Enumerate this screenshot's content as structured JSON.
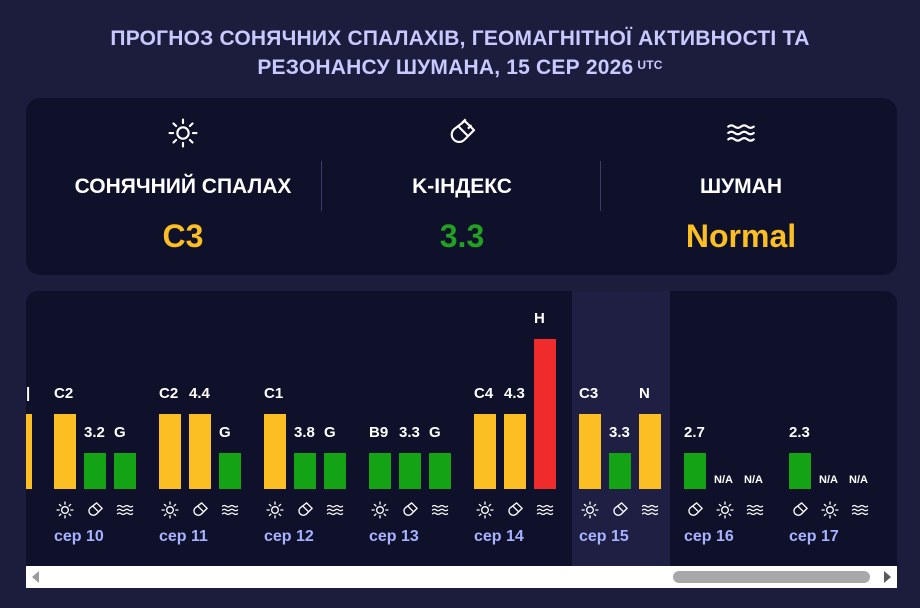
{
  "title": {
    "line1": "ПРОГНОЗ СОНЯЧНИХ СПАЛАХІВ, ГЕОМАГНІТНОЇ АКТИВНОСТІ ТА",
    "line2": "РЕЗОНАНСУ ШУМАНА, 15 СЕР 2026",
    "tz": "UTC"
  },
  "summary": {
    "flare": {
      "label": "СОНЯЧНИЙ СПАЛАХ",
      "value": "C3",
      "color": "#fbbf24",
      "icon": "sun-icon"
    },
    "kindex": {
      "label": "K-ІНДЕКС",
      "value": "3.3",
      "color": "#22a022",
      "icon": "magnet-icon"
    },
    "schumann": {
      "label": "ШУМАН",
      "value": "Normal",
      "color": "#fbbf24",
      "icon": "waves-icon"
    }
  },
  "colors": {
    "yellow": "#fbbf24",
    "green": "#14a314",
    "red": "#f02b2b",
    "date": "#a6b1ff"
  },
  "days": [
    {
      "date": "сер 10",
      "bars": [
        {
          "type": "flare",
          "label": "C2",
          "level": 0.5,
          "color": "#fbbf24"
        },
        {
          "type": "kindex",
          "label": "3.2",
          "level": 0.24,
          "color": "#14a314"
        },
        {
          "type": "schumann",
          "label": "G",
          "level": 0.24,
          "color": "#14a314"
        }
      ]
    },
    {
      "date": "сер 11",
      "bars": [
        {
          "type": "flare",
          "label": "C2",
          "level": 0.5,
          "color": "#fbbf24"
        },
        {
          "type": "kindex",
          "label": "4.4",
          "level": 0.5,
          "color": "#fbbf24"
        },
        {
          "type": "schumann",
          "label": "G",
          "level": 0.24,
          "color": "#14a314"
        }
      ]
    },
    {
      "date": "сер 12",
      "bars": [
        {
          "type": "flare",
          "label": "C1",
          "level": 0.5,
          "color": "#fbbf24"
        },
        {
          "type": "kindex",
          "label": "3.8",
          "level": 0.24,
          "color": "#14a314"
        },
        {
          "type": "schumann",
          "label": "G",
          "level": 0.24,
          "color": "#14a314"
        }
      ]
    },
    {
      "date": "сер 13",
      "bars": [
        {
          "type": "flare",
          "label": "B9",
          "level": 0.24,
          "color": "#14a314"
        },
        {
          "type": "kindex",
          "label": "3.3",
          "level": 0.24,
          "color": "#14a314"
        },
        {
          "type": "schumann",
          "label": "G",
          "level": 0.24,
          "color": "#14a314"
        }
      ]
    },
    {
      "date": "сер 14",
      "bars": [
        {
          "type": "flare",
          "label": "C4",
          "level": 0.5,
          "color": "#fbbf24"
        },
        {
          "type": "kindex",
          "label": "4.3",
          "level": 0.5,
          "color": "#fbbf24"
        },
        {
          "type": "schumann",
          "label": "H",
          "level": 1.0,
          "color": "#f02b2b"
        }
      ]
    },
    {
      "date": "сер 15",
      "bars": [
        {
          "type": "flare",
          "label": "C3",
          "level": 0.5,
          "color": "#fbbf24"
        },
        {
          "type": "kindex",
          "label": "3.3",
          "level": 0.24,
          "color": "#14a314"
        },
        {
          "type": "schumann",
          "label": "N",
          "level": 0.5,
          "color": "#fbbf24"
        }
      ]
    },
    {
      "date": "сер 16",
      "bars": [
        {
          "type": "kindex",
          "label": "2.7",
          "level": 0.24,
          "color": "#14a314"
        },
        {
          "type": "flare",
          "label": "N/A",
          "level": 0,
          "color": "#14a314"
        },
        {
          "type": "schumann",
          "label": "N/A",
          "level": 0,
          "color": "#14a314"
        }
      ]
    },
    {
      "date": "сер 17",
      "bars": [
        {
          "type": "kindex",
          "label": "2.3",
          "level": 0.24,
          "color": "#14a314"
        },
        {
          "type": "flare",
          "label": "N/A",
          "level": 0,
          "color": "#14a314"
        },
        {
          "type": "schumann",
          "label": "N/A",
          "level": 0,
          "color": "#14a314"
        }
      ]
    }
  ]
}
